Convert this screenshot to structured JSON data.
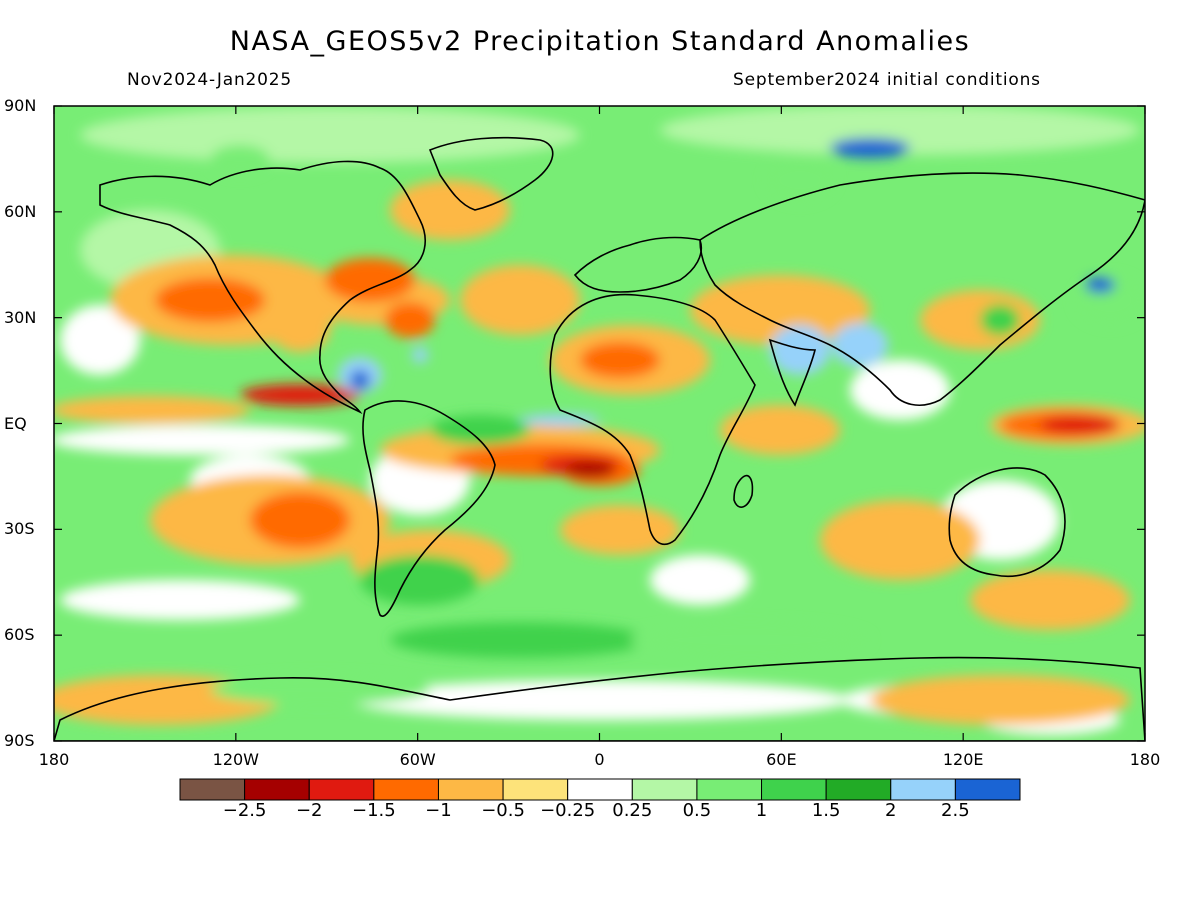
{
  "title": "NASA_GEOS5v2 Precipitation Standard Anomalies",
  "period": "Nov2024-Jan2025",
  "initial_conditions": "September2024 initial conditions",
  "lat_labels": [
    "90N",
    "60N",
    "30N",
    "EQ",
    "30S",
    "60S",
    "90S"
  ],
  "lon_labels": [
    "180",
    "120W",
    "60W",
    "0",
    "60E",
    "120E",
    "180"
  ],
  "colorbar": {
    "colors": [
      "#7a5444",
      "#a50000",
      "#e01a10",
      "#ff6a00",
      "#fdb845",
      "#fde37a",
      "#ffffff",
      "#b4f7a6",
      "#78ed75",
      "#3fd24c",
      "#22ab26",
      "#96d2fa",
      "#1a64d4"
    ],
    "labels": [
      "-2.5",
      "-2",
      "-1.5",
      "-1",
      "-0.5",
      "-0.25",
      "0.25",
      "0.5",
      "1",
      "1.5",
      "2",
      "2.5"
    ]
  }
}
